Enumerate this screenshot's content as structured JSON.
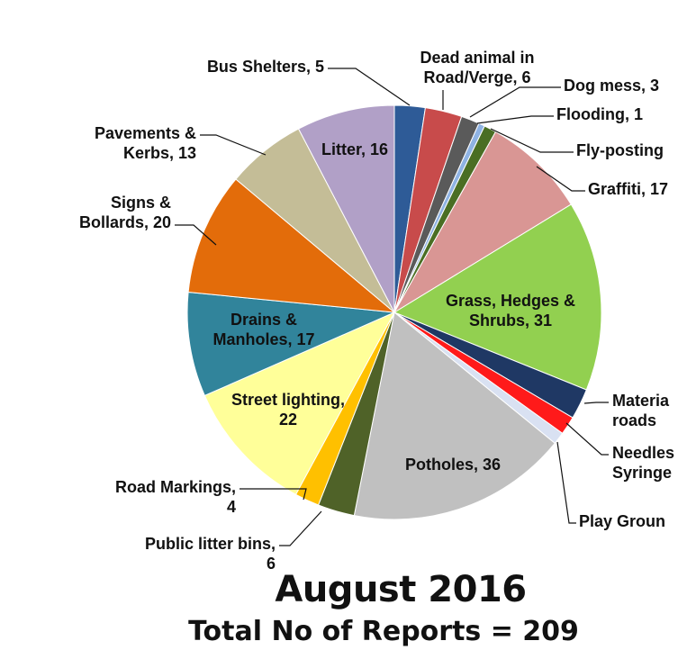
{
  "chart_data": {
    "type": "pie",
    "title": "August 2016",
    "subtitle": "Total No of Reports = 209",
    "slices": [
      {
        "name": "Bus Shelters",
        "value": 5,
        "color": "#2e5b97",
        "label": [
          "Bus Shelters, 5"
        ]
      },
      {
        "name": "Dead animal in Road/Verge",
        "value": 6,
        "color": "#c84b4b",
        "label": [
          "Dead animal in",
          "Road/Verge, 6"
        ]
      },
      {
        "name": "Dog mess",
        "value": 3,
        "color": "#5a5a5a",
        "label": [
          "Dog mess, 3"
        ]
      },
      {
        "name": "Flooding",
        "value": 1,
        "color": "#8fb3e3",
        "label": [
          "Flooding, 1"
        ]
      },
      {
        "name": "Fly-posting",
        "value": 2,
        "color": "#4a6e24",
        "label": [
          "Fly-posting"
        ]
      },
      {
        "name": "Graffiti",
        "value": 17,
        "color": "#d99694",
        "label": [
          "Graffiti, 17"
        ]
      },
      {
        "name": "Grass, Hedges & Shrubs",
        "value": 31,
        "color": "#92d050",
        "label": [
          "Grass, Hedges &",
          "Shrubs, 31"
        ]
      },
      {
        "name": "Material on roads",
        "value": 5,
        "color": "#1f3864",
        "label": [
          "Materia",
          "roads"
        ]
      },
      {
        "name": "Needles & Syringes",
        "value": 3,
        "color": "#ff1a1a",
        "label": [
          "Needles",
          "Syringe"
        ]
      },
      {
        "name": "Play Grounds",
        "value": 2,
        "color": "#d9e1f2",
        "label": [
          "Play Groun"
        ]
      },
      {
        "name": "Potholes",
        "value": 36,
        "color": "#c0c0c0",
        "label": [
          "Potholes, 36"
        ]
      },
      {
        "name": "Public litter bins",
        "value": 6,
        "color": "#4f6228",
        "label": [
          "Public litter bins,",
          "6"
        ]
      },
      {
        "name": "Road Markings",
        "value": 4,
        "color": "#ffc000",
        "label": [
          "Road Markings,",
          "4"
        ]
      },
      {
        "name": "Street lighting",
        "value": 22,
        "color": "#ffff99",
        "label": [
          "Street lighting,",
          "22"
        ]
      },
      {
        "name": "Drains & Manholes",
        "value": 17,
        "color": "#31849b",
        "label": [
          "Drains &",
          "Manholes, 17"
        ]
      },
      {
        "name": "Signs & Bollards",
        "value": 20,
        "color": "#e36c0a",
        "label": [
          "Signs &",
          "Bollards, 20"
        ]
      },
      {
        "name": "Pavements & Kerbs",
        "value": 13,
        "color": "#c4bd97",
        "label": [
          "Pavements &",
          "Kerbs, 13"
        ]
      },
      {
        "name": "Litter",
        "value": 16,
        "color": "#b1a0c7",
        "label": [
          "Litter, 16"
        ]
      }
    ]
  }
}
